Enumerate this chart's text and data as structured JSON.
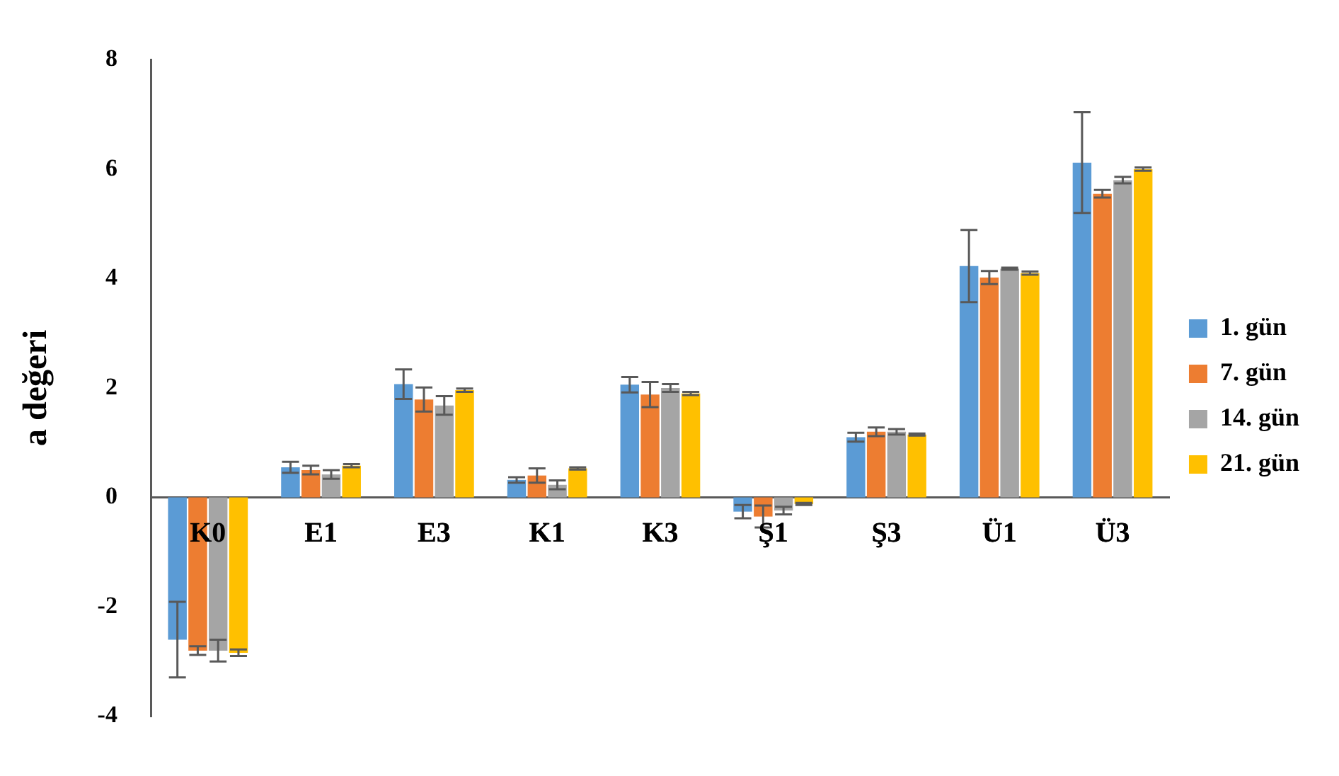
{
  "chart_data": {
    "type": "bar",
    "ylabel": "a değeri",
    "categories": [
      "K0",
      "E1",
      "E3",
      "K1",
      "K3",
      "Ş1",
      "Ş3",
      "Ü1",
      "Ü3"
    ],
    "series": [
      {
        "name": "1. gün",
        "color": "#5b9bd5",
        "values": [
          -2.6,
          0.55,
          2.07,
          0.32,
          2.06,
          -0.26,
          1.1,
          4.23,
          6.12
        ],
        "errors": [
          0.69,
          0.1,
          0.27,
          0.05,
          0.14,
          0.12,
          0.08,
          0.66,
          0.92
        ]
      },
      {
        "name": "7. gün",
        "color": "#ed7d31",
        "values": [
          -2.8,
          0.5,
          1.79,
          0.4,
          1.88,
          -0.35,
          1.2,
          4.02,
          5.55
        ],
        "errors": [
          0.08,
          0.08,
          0.22,
          0.13,
          0.23,
          0.2,
          0.08,
          0.12,
          0.07
        ]
      },
      {
        "name": "14. gün",
        "color": "#a5a5a5",
        "values": [
          -2.8,
          0.42,
          1.68,
          0.23,
          2.0,
          -0.24,
          1.2,
          4.18,
          5.8
        ],
        "errors": [
          0.2,
          0.08,
          0.17,
          0.08,
          0.07,
          0.07,
          0.05,
          0.02,
          0.06
        ]
      },
      {
        "name": "21. gün",
        "color": "#ffc000",
        "values": [
          -2.84,
          0.58,
          1.96,
          0.53,
          1.9,
          -0.12,
          1.15,
          4.1,
          6.0
        ],
        "errors": [
          0.06,
          0.03,
          0.03,
          0.02,
          0.03,
          0.02,
          0.02,
          0.03,
          0.03
        ]
      }
    ],
    "ylim": [
      -4,
      8
    ],
    "yticks": [
      -4,
      -2,
      0,
      2,
      4,
      6,
      8
    ],
    "grid": false,
    "legend": "right"
  }
}
